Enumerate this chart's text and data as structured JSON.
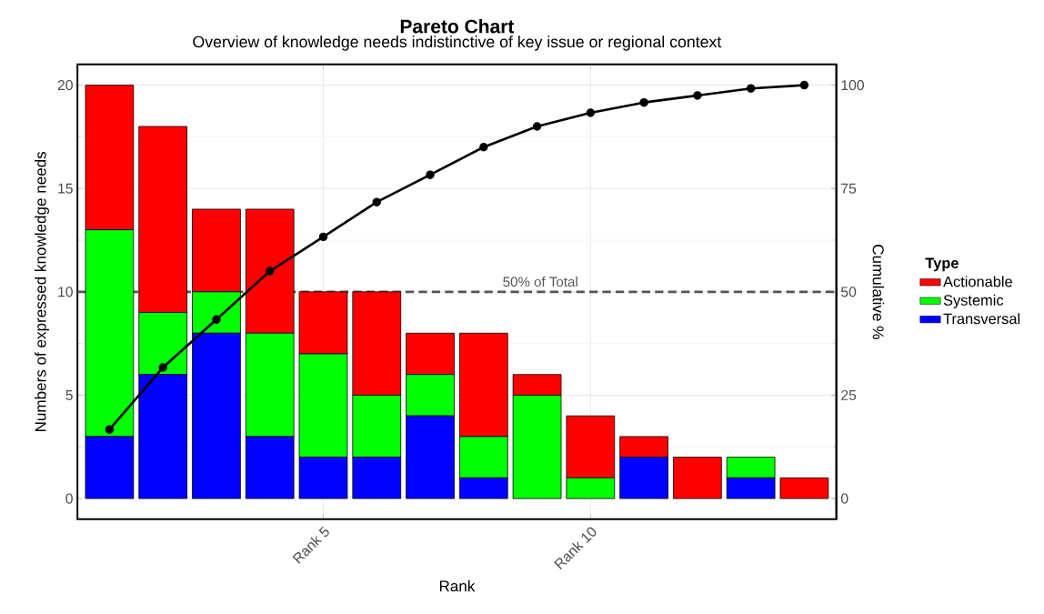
{
  "chart_data": {
    "type": "bar",
    "title": "Pareto Chart",
    "subtitle": "Overview of knowledge needs indistinctive of key issue or regional context",
    "xlabel": "Rank",
    "ylabel": "Numbers of expressed knowledge needs",
    "y2label": "Cumulative %",
    "legend_title": "Type",
    "categories": [
      null,
      null,
      null,
      null,
      "Rank 5",
      null,
      null,
      null,
      null,
      "Rank 10",
      null,
      null,
      null,
      null
    ],
    "series": [
      {
        "name": "Transversal",
        "color": "#0000ff",
        "values": [
          3,
          6,
          8,
          3,
          2,
          2,
          4,
          1,
          0,
          0,
          2,
          0,
          1,
          0
        ]
      },
      {
        "name": "Systemic",
        "color": "#00ff00",
        "values": [
          10,
          3,
          2,
          5,
          5,
          3,
          2,
          2,
          5,
          1,
          0,
          0,
          1,
          0
        ]
      },
      {
        "name": "Actionable",
        "color": "#ff0000",
        "values": [
          7,
          9,
          4,
          6,
          3,
          5,
          2,
          5,
          1,
          3,
          1,
          2,
          0,
          1
        ]
      },
      {
        "type": "line",
        "axis": "y2",
        "color": "#000000",
        "values": [
          16.7,
          31.7,
          43.3,
          55,
          63.3,
          71.7,
          78.3,
          85,
          90,
          93.3,
          95.8,
          97.5,
          99.2,
          100
        ]
      }
    ],
    "stacked": true,
    "ylim": [
      -1,
      21
    ],
    "yticks": [
      0,
      5,
      10,
      15,
      20
    ],
    "y2lim": [
      -5,
      105
    ],
    "y2ticks": [
      0,
      25,
      50,
      75,
      100
    ],
    "ref_lines": [
      {
        "axis": "y",
        "value": 10,
        "label": "50% of Total",
        "color": "#555555",
        "line_style": "dashed"
      }
    ],
    "grid": true,
    "legend": "right",
    "marker": "circle"
  }
}
